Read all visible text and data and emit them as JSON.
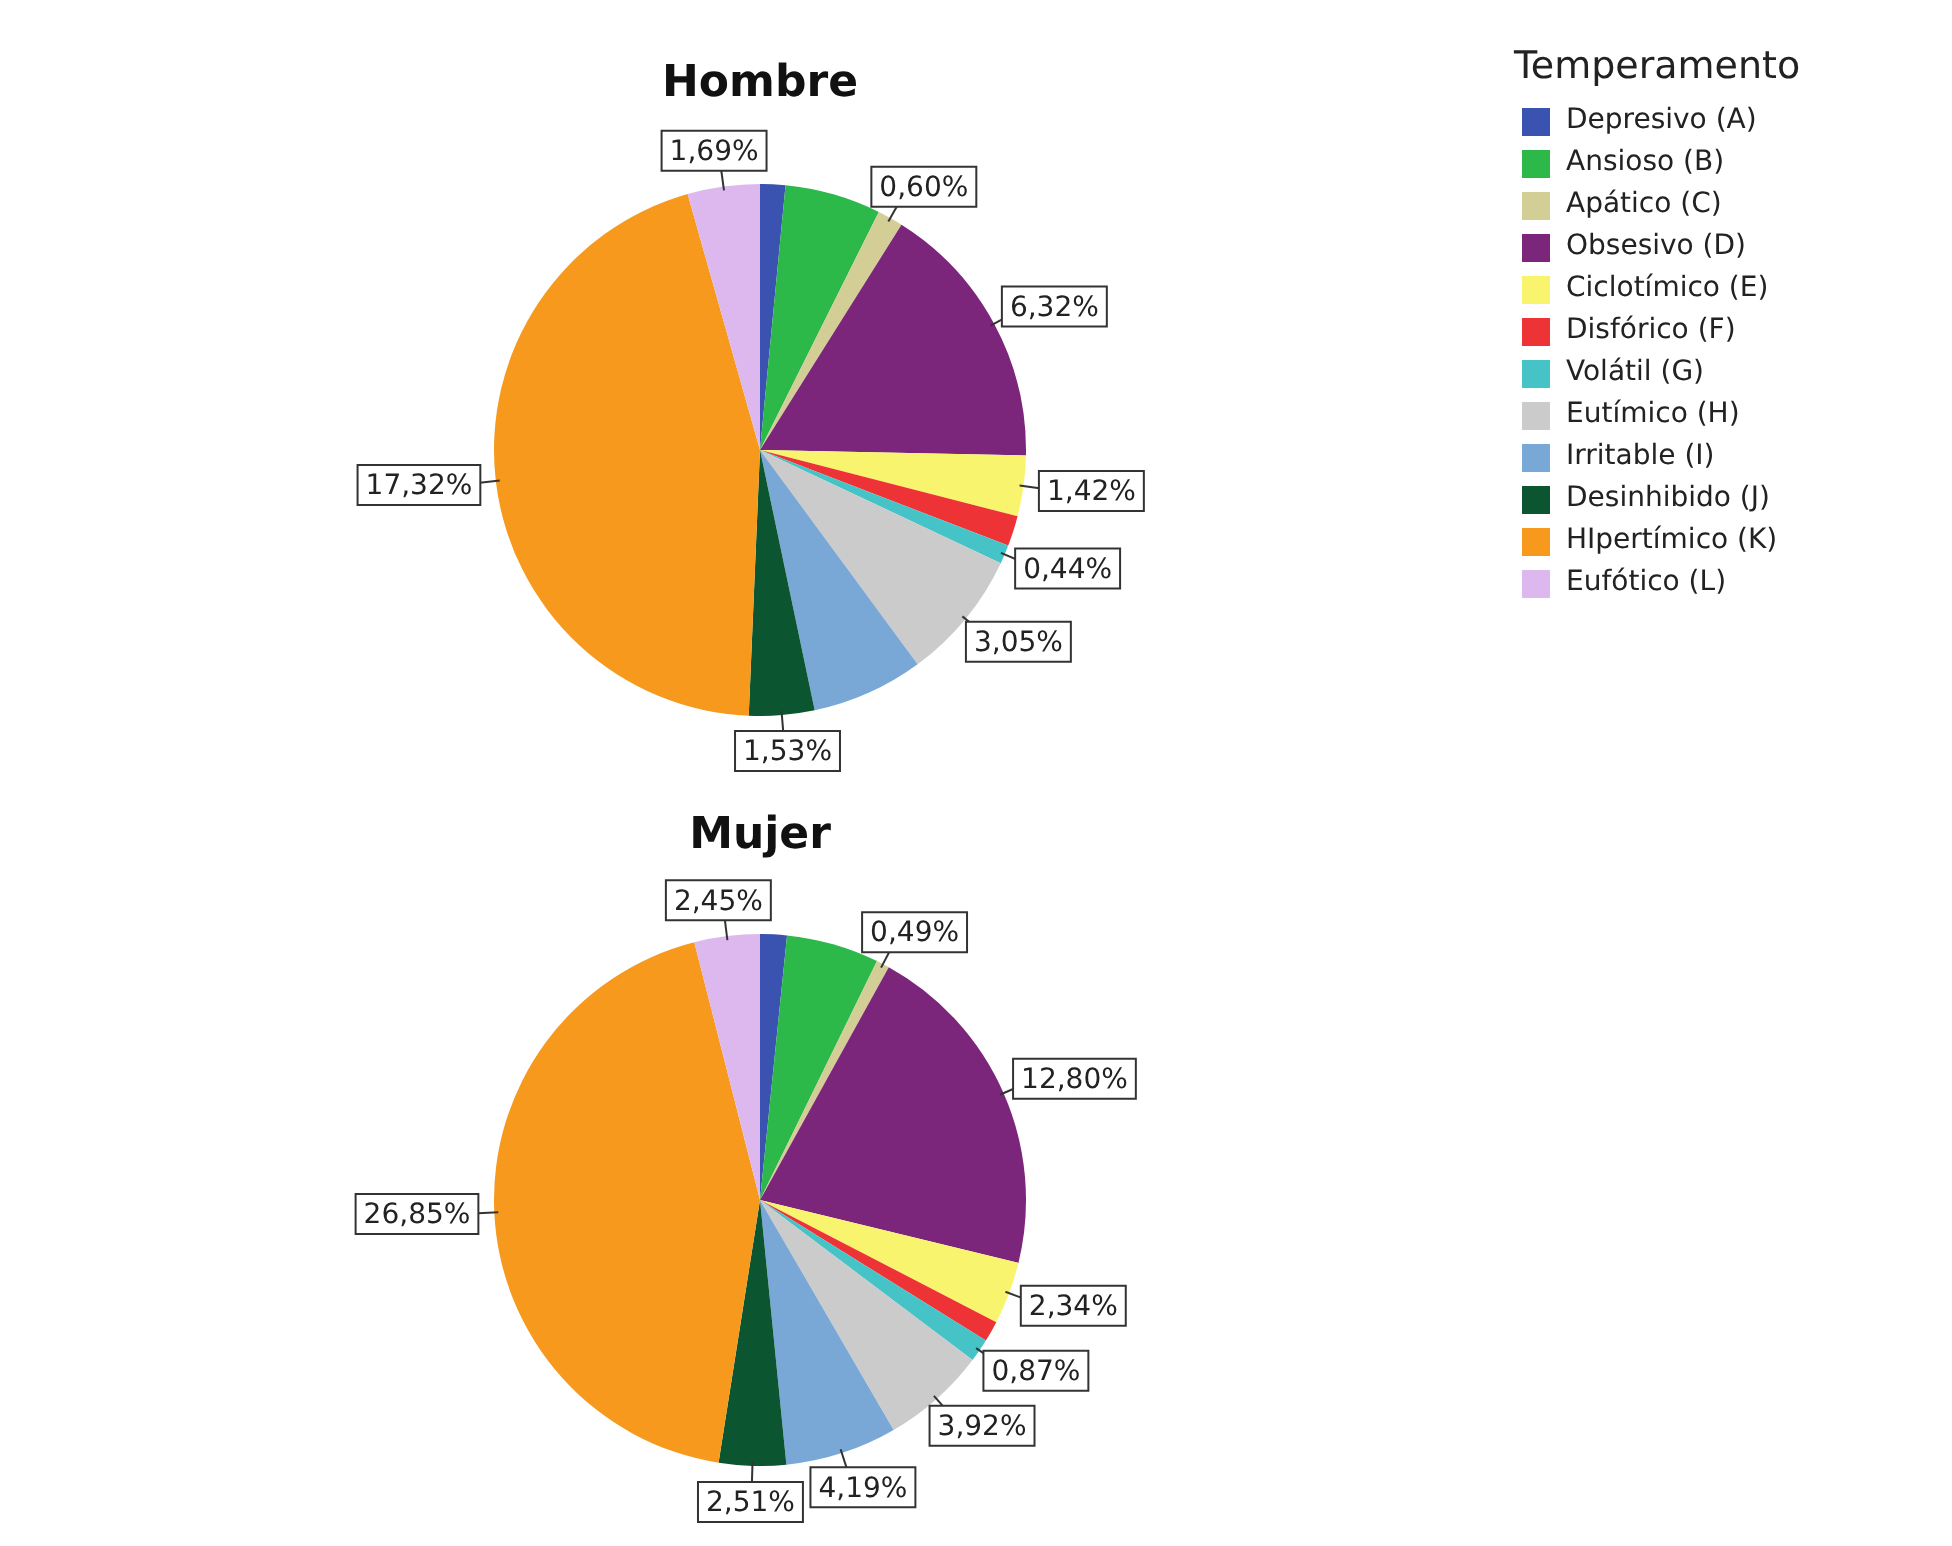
{
  "chart_data": [
    {
      "type": "pie",
      "title": "Hombre",
      "legend_title": "Temperamento",
      "legend": "right",
      "categories": [
        "Depresivo (A)",
        "Ansioso (B)",
        "Apático (C)",
        "Obsesivo (D)",
        "Ciclotímico (E)",
        "Disfórico (F)",
        "Volátil (G)",
        "Eutímico (H)",
        "Irritable (I)",
        "Desinhibido (J)",
        "HIpertímico (K)",
        "Eufótico (L)"
      ],
      "values": [
        0.59,
        2.25,
        0.6,
        6.32,
        1.42,
        0.71,
        0.44,
        3.05,
        2.62,
        1.53,
        17.32,
        1.69
      ],
      "value_labels": [
        null,
        null,
        "0,60%",
        "6,32%",
        "1,42%",
        null,
        "0,44%",
        "3,05%",
        null,
        "1,53%",
        "17,32%",
        "1,69%"
      ],
      "colors": [
        "#3a52b0",
        "#2db84a",
        "#d3cd96",
        "#7b267a",
        "#f8f46e",
        "#ee3337",
        "#45c3c6",
        "#cbcbcb",
        "#7aa8d6",
        "#0b5630",
        "#f6991d",
        "#dcb8ee"
      ]
    },
    {
      "type": "pie",
      "title": "Mujer",
      "categories": [
        null,
        null,
        null,
        null,
        null,
        null,
        null,
        null,
        null,
        null,
        null,
        null
      ],
      "values": [
        1.0,
        3.47,
        0.49,
        12.8,
        2.34,
        0.78,
        0.87,
        3.92,
        4.19,
        2.51,
        26.85,
        2.45
      ],
      "value_labels": [
        null,
        null,
        "0,49%",
        "12,80%",
        "2,34%",
        null,
        "0,87%",
        "3,92%",
        "4,19%",
        "2,51%",
        "26,85%",
        "2,45%"
      ],
      "colors": [
        "#3a52b0",
        "#2db84a",
        "#d3cd96",
        "#7b267a",
        "#f8f46e",
        "#ee3337",
        "#45c3c6",
        "#cbcbcb",
        "#7aa8d6",
        "#0b5630",
        "#f6991d",
        "#dcb8ee"
      ]
    }
  ]
}
